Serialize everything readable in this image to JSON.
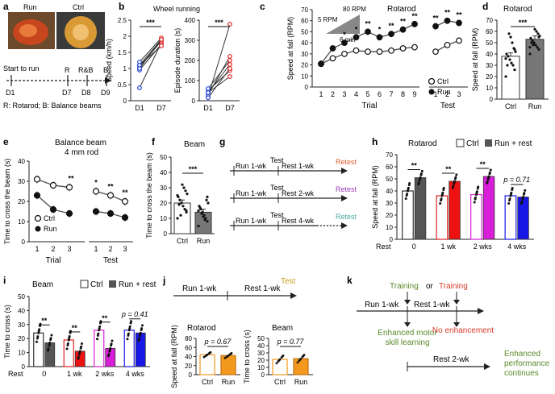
{
  "panel_letters": [
    "a",
    "b",
    "c",
    "d",
    "e",
    "f",
    "g",
    "h",
    "i",
    "j",
    "k"
  ],
  "colors": {
    "ctrl_blue": "#1f3fd8",
    "run_red": "#e02222",
    "red_bar": "#ee1111",
    "magenta": "#d81ed8",
    "blue_bar": "#1818e6",
    "orange": "#f39a1e",
    "dark": "#555555",
    "retest_red": "#e05a2a",
    "retest_purple": "#9a3cb8",
    "retest_teal": "#4aa8a0",
    "test_gold": "#c8a020",
    "green_text": "#5a8a2a",
    "red_text": "#d83a2a"
  },
  "a": {
    "photo_run": "Run",
    "photo_ctrl": "Ctrl",
    "start": "Start to run",
    "d1": "D1",
    "r": "R",
    "rb": "R&B",
    "b": "B",
    "d7": "D7",
    "d8": "D8",
    "d9": "D9",
    "legend": "R: Rotarod; B: Balance beams"
  },
  "b": {
    "title": "Wheel running",
    "ylabel1": "Speed (km/h)",
    "ylabel2": "Episode duration (s)",
    "x1": "D1",
    "x2": "D7",
    "sig": "***"
  },
  "c": {
    "title": "Rotarod",
    "rpm5": "5 RPM",
    "rpm80": "80 RPM",
    "min6": "6 min",
    "ylabel": "Speed at fall (RPM)",
    "xlabel_trial": "Trial",
    "xlabel_test": "Test",
    "legend_ctrl": "Ctrl",
    "legend_run": "Run"
  },
  "d": {
    "title": "Rotarod",
    "ylabel": "Speed at fall (RPM)",
    "cats": [
      "Ctrl",
      "Run"
    ],
    "sig": "***"
  },
  "e": {
    "title1": "Balance beam",
    "title2": "4 mm rod",
    "ylabel": "Time to cross the beam (s)",
    "xlabel_trial": "Trial",
    "xlabel_test": "Test",
    "legend_ctrl": "Ctrl",
    "legend_run": "Run"
  },
  "f": {
    "title": "Beam",
    "ylabel": "Time to cross the beam (s)",
    "cats": [
      "Ctrl",
      "Run"
    ],
    "sig": "***"
  },
  "g": {
    "rows": [
      {
        "run": "Run 1-wk",
        "test": "Test",
        "rest": "Rest 1-wk",
        "retest": "Retest"
      },
      {
        "run": "Run 1-wk",
        "test": "Test",
        "rest": "Rest 2-wk",
        "retest": "Retest"
      },
      {
        "run": "Run 1-wk",
        "test": "Test",
        "rest": "Rest 4-wk",
        "retest": "Retest"
      }
    ]
  },
  "h": {
    "title": "Rotarod",
    "legend_ctrl": "Ctrl",
    "legend_run": "Run + rest",
    "ylabel": "Speed at fall (RPM)",
    "rest_label": "Rest",
    "cats": [
      "0",
      "1 wk",
      "2 wks",
      "4 wks"
    ],
    "pval": "p = 0.71",
    "sig": [
      "**",
      "**",
      "**"
    ]
  },
  "i": {
    "title": "Beam",
    "legend_ctrl": "Ctrl",
    "legend_run": "Run + rest",
    "ylabel": "Time to cross (s)",
    "rest_label": "Rest",
    "cats": [
      "0",
      "1 wk",
      "2 wks",
      "4 wks"
    ],
    "pval": "p = 0.41",
    "sig": [
      "**",
      "**",
      "**"
    ]
  },
  "j": {
    "run": "Run 1-wk",
    "rest": "Rest 1-wk",
    "test": "Test",
    "title1": "Rotarod",
    "title2": "Beam",
    "ylabel1": "Speed at fall (RPM)",
    "ylabel2": "Time to cross (s)",
    "p1": "p = 0.67",
    "p2": "p = 0.77",
    "cats": [
      "Ctrl",
      "Run"
    ]
  },
  "k": {
    "training1": "Training",
    "or": "or",
    "training2": "Training",
    "run": "Run 1-wk",
    "rest": "Rest 1-wk",
    "enh1": "Enhanced motor",
    "enh2": "skill learning",
    "noenh": "No enhancement",
    "rest2": "Rest 2-wk",
    "perf1": "Enhanced",
    "perf2": "performance",
    "perf3": "continues"
  },
  "chart_data": [
    {
      "panel": "b-left",
      "type": "line",
      "title": "Wheel running",
      "ylabel": "Speed (km/h)",
      "categories": [
        "D1",
        "D7"
      ],
      "ylim": [
        0,
        2.5
      ],
      "yticks": [
        0,
        0.5,
        1.0,
        1.5,
        2.0,
        2.5
      ],
      "pairs": [
        [
          0.4,
          1.8
        ],
        [
          0.95,
          1.75
        ],
        [
          1.05,
          1.85
        ],
        [
          1.1,
          1.9
        ],
        [
          1.2,
          1.95
        ],
        [
          1.1,
          1.7
        ],
        [
          1.0,
          1.9
        ]
      ]
    },
    {
      "panel": "b-right",
      "type": "line",
      "ylabel": "Episode duration (s)",
      "categories": [
        "D1",
        "D7"
      ],
      "ylim": [
        0,
        400
      ],
      "yticks": [
        0,
        100,
        200,
        300,
        400
      ],
      "pairs": [
        [
          20,
          380
        ],
        [
          30,
          220
        ],
        [
          40,
          180
        ],
        [
          50,
          150
        ],
        [
          60,
          200
        ],
        [
          15,
          160
        ],
        [
          40,
          120
        ]
      ]
    },
    {
      "panel": "c",
      "type": "line",
      "title": "Rotarod",
      "ylabel": "Speed at fall (RPM)",
      "ylim": [
        0,
        70
      ],
      "yticks": [
        0,
        10,
        20,
        30,
        40,
        50,
        60,
        70
      ],
      "trial": {
        "x": [
          1,
          2,
          3,
          4,
          5,
          6,
          7,
          8,
          9
        ],
        "ctrl": [
          21,
          26,
          30,
          33,
          32,
          32,
          33,
          35,
          36
        ],
        "run": [
          21,
          35,
          40,
          45,
          50,
          45,
          48,
          52,
          57
        ]
      },
      "test": {
        "x": [
          1,
          2,
          3
        ],
        "ctrl": [
          32,
          38,
          42
        ],
        "run": [
          55,
          60,
          58
        ]
      },
      "trial_sig": [
        "",
        "",
        "*",
        "*",
        "**",
        "*",
        "**",
        "**",
        "**"
      ],
      "test_sig": [
        "**",
        "**",
        "**"
      ]
    },
    {
      "panel": "d",
      "type": "bar",
      "title": "Rotarod",
      "categories": [
        "Ctrl",
        "Run"
      ],
      "values": [
        38,
        53
      ],
      "errors": [
        3,
        3
      ],
      "ylim": [
        0,
        70
      ],
      "yticks": [
        0,
        10,
        20,
        30,
        40,
        50,
        60,
        70
      ],
      "points": [
        [
          20,
          26,
          30,
          32,
          35,
          38,
          40,
          42,
          45,
          50,
          55,
          58,
          30,
          36,
          44
        ],
        [
          40,
          44,
          46,
          48,
          50,
          52,
          54,
          56,
          58,
          60,
          62,
          48,
          50,
          46,
          55
        ]
      ]
    },
    {
      "panel": "e",
      "type": "line",
      "title": "Balance beam 4 mm rod",
      "ylabel": "Time to cross the beam (s)",
      "ylim": [
        0,
        40
      ],
      "yticks": [
        0,
        10,
        20,
        30,
        40
      ],
      "trial": {
        "x": [
          1,
          2,
          3
        ],
        "ctrl": [
          31,
          28,
          27
        ],
        "run": [
          23,
          16,
          14
        ]
      },
      "test": {
        "x": [
          1,
          2,
          3
        ],
        "ctrl": [
          25,
          23,
          20
        ],
        "run": [
          15,
          14,
          12
        ]
      },
      "trial_sig": [
        "",
        "",
        "**"
      ],
      "test_sig": [
        "*",
        "**",
        "**"
      ]
    },
    {
      "panel": "f",
      "type": "bar",
      "title": "Beam",
      "categories": [
        "Ctrl",
        "Run"
      ],
      "values": [
        20,
        14
      ],
      "errors": [
        2,
        2
      ],
      "ylim": [
        0,
        50
      ],
      "yticks": [
        0,
        10,
        20,
        30,
        40,
        50
      ],
      "points": [
        [
          10,
          14,
          16,
          18,
          20,
          22,
          24,
          26,
          28,
          30,
          32,
          12,
          19,
          25,
          15
        ],
        [
          5,
          8,
          10,
          12,
          14,
          16,
          18,
          20,
          22,
          9,
          11,
          13,
          17,
          15,
          24
        ]
      ]
    },
    {
      "panel": "h",
      "type": "bar",
      "title": "Rotarod",
      "ylabel": "Speed at fall (RPM)",
      "categories": [
        "0",
        "1 wk",
        "2 wks",
        "4 wks"
      ],
      "ylim": [
        0,
        70
      ],
      "yticks": [
        0,
        10,
        20,
        30,
        40,
        50,
        60,
        70
      ],
      "series": [
        {
          "name": "Ctrl",
          "values": [
            40,
            36,
            37,
            36
          ]
        },
        {
          "name": "Run + rest",
          "values": [
            51,
            48,
            52,
            35
          ]
        }
      ]
    },
    {
      "panel": "i",
      "type": "bar",
      "title": "Beam",
      "ylabel": "Time to cross (s)",
      "categories": [
        "0",
        "1 wk",
        "2 wks",
        "4 wks"
      ],
      "ylim": [
        0,
        50
      ],
      "yticks": [
        0,
        10,
        20,
        30,
        40,
        50
      ],
      "series": [
        {
          "name": "Ctrl",
          "values": [
            24,
            19,
            26,
            26
          ]
        },
        {
          "name": "Run + rest",
          "values": [
            17,
            11,
            13,
            24
          ]
        }
      ]
    },
    {
      "panel": "j-left",
      "type": "bar",
      "title": "Rotarod",
      "ylabel": "Speed at fall (RPM)",
      "categories": [
        "Ctrl",
        "Run"
      ],
      "values": [
        44,
        42
      ],
      "ylim": [
        0,
        80
      ],
      "yticks": [
        0,
        20,
        40,
        60,
        80
      ]
    },
    {
      "panel": "j-right",
      "type": "bar",
      "title": "Beam",
      "ylabel": "Time to cross (s)",
      "categories": [
        "Ctrl",
        "Run"
      ],
      "values": [
        21,
        22
      ],
      "ylim": [
        0,
        50
      ],
      "yticks": [
        0,
        10,
        20,
        30,
        40,
        50
      ]
    }
  ]
}
